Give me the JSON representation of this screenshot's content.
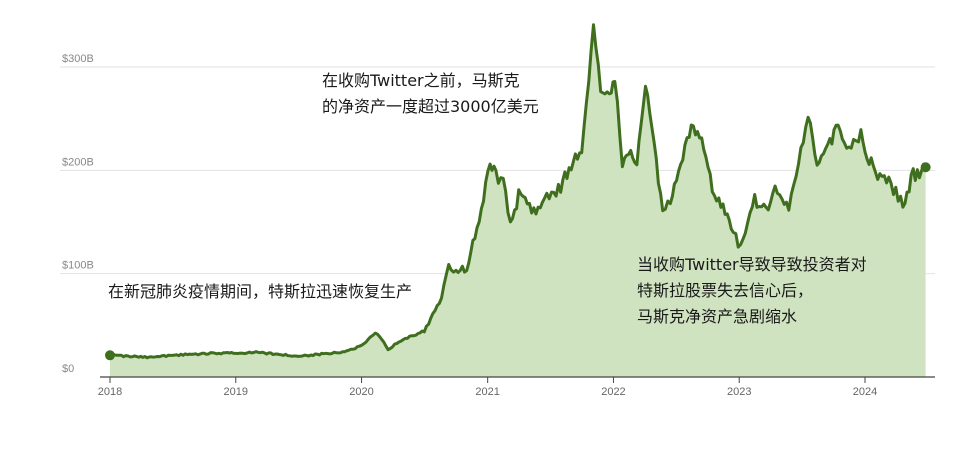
{
  "chart_data": {
    "type": "area",
    "title": "",
    "xlabel": "",
    "ylabel": "",
    "x_ticks": [
      "2018",
      "2019",
      "2020",
      "2021",
      "2022",
      "2023",
      "2024"
    ],
    "y_ticks": [
      "$0",
      "$100B",
      "$200B",
      "$300B"
    ],
    "ylim": [
      0,
      340
    ],
    "xlim": [
      "2018-01-01",
      "2024-07-31"
    ],
    "grid": true,
    "line_color": "#3f6f1e",
    "fill_color": "#cfe3c0",
    "series": [
      {
        "unit": "USD billions",
        "points": [
          [
            "2018-01-01",
            21
          ],
          [
            "2018-03-01",
            20
          ],
          [
            "2018-05-01",
            19
          ],
          [
            "2018-07-01",
            21
          ],
          [
            "2018-09-01",
            22
          ],
          [
            "2018-11-01",
            23
          ],
          [
            "2019-01-01",
            23
          ],
          [
            "2019-03-01",
            24
          ],
          [
            "2019-05-01",
            22
          ],
          [
            "2019-07-01",
            20
          ],
          [
            "2019-09-01",
            22
          ],
          [
            "2019-11-01",
            24
          ],
          [
            "2020-01-01",
            30
          ],
          [
            "2020-02-10",
            44
          ],
          [
            "2020-03-18",
            27
          ],
          [
            "2020-05-01",
            36
          ],
          [
            "2020-07-01",
            45
          ],
          [
            "2020-08-20",
            76
          ],
          [
            "2020-09-10",
            110
          ],
          [
            "2020-10-01",
            102
          ],
          [
            "2020-11-01",
            105
          ],
          [
            "2020-12-01",
            145
          ],
          [
            "2020-12-20",
            172
          ],
          [
            "2021-01-08",
            205
          ],
          [
            "2021-01-25",
            195
          ],
          [
            "2021-02-15",
            190
          ],
          [
            "2021-03-08",
            150
          ],
          [
            "2021-04-01",
            175
          ],
          [
            "2021-05-15",
            160
          ],
          [
            "2021-06-15",
            172
          ],
          [
            "2021-08-01",
            185
          ],
          [
            "2021-10-01",
            220
          ],
          [
            "2021-11-04",
            338
          ],
          [
            "2021-11-25",
            275
          ],
          [
            "2021-12-20",
            270
          ],
          [
            "2022-01-05",
            287
          ],
          [
            "2022-01-27",
            210
          ],
          [
            "2022-02-20",
            225
          ],
          [
            "2022-03-10",
            205
          ],
          [
            "2022-04-04",
            285
          ],
          [
            "2022-05-24",
            162
          ],
          [
            "2022-06-15",
            173
          ],
          [
            "2022-07-15",
            205
          ],
          [
            "2022-08-15",
            240
          ],
          [
            "2022-09-20",
            223
          ],
          [
            "2022-10-15",
            183
          ],
          [
            "2022-11-15",
            165
          ],
          [
            "2022-12-15",
            140
          ],
          [
            "2023-01-05",
            125
          ],
          [
            "2023-02-15",
            172
          ],
          [
            "2023-03-20",
            162
          ],
          [
            "2023-04-15",
            180
          ],
          [
            "2023-05-25",
            165
          ],
          [
            "2023-06-15",
            195
          ],
          [
            "2023-07-20",
            250
          ],
          [
            "2023-08-15",
            210
          ],
          [
            "2023-09-15",
            225
          ],
          [
            "2023-10-15",
            240
          ],
          [
            "2023-11-15",
            220
          ],
          [
            "2023-12-20",
            235
          ],
          [
            "2024-01-25",
            200
          ],
          [
            "2024-03-10",
            188
          ],
          [
            "2024-04-20",
            168
          ],
          [
            "2024-05-20",
            195
          ],
          [
            "2024-06-25",
            203
          ]
        ]
      }
    ],
    "annotations": [
      {
        "id": "peak",
        "lines": [
          "在收购Twitter之前，马斯克",
          "的净资产一度超过3000亿美元"
        ]
      },
      {
        "id": "covid",
        "lines": [
          "在新冠肺炎疫情期间，特斯拉迅速恢复生产"
        ]
      },
      {
        "id": "decline",
        "lines": [
          "当收购Twitter导致导致投资者对",
          "特斯拉股票失去信心后，",
          "马斯克净资产急剧缩水"
        ]
      }
    ]
  }
}
